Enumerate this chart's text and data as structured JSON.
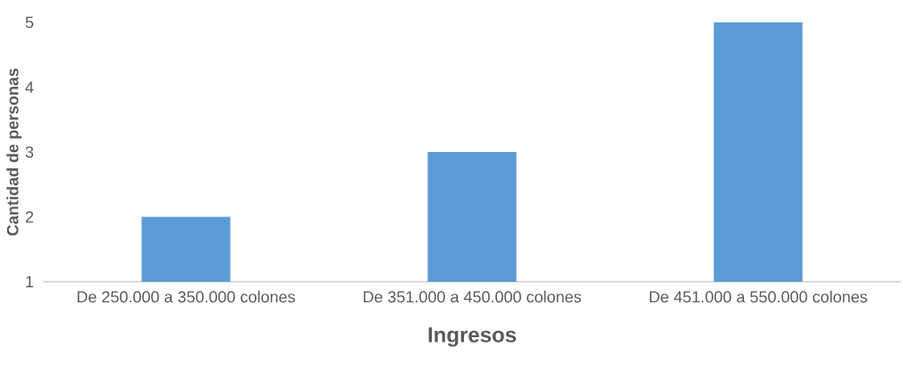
{
  "chart_data": {
    "type": "bar",
    "xlabel": "Ingresos",
    "ylabel": "Cantidad de personas",
    "categories": [
      "De 250.000 a 350.000 colones",
      "De 351.000 a 450.000 colones",
      "De 451.000 a 550.000 colones"
    ],
    "values": [
      2,
      3,
      5
    ],
    "color": "#5b9bd5",
    "ylim": [
      1,
      5
    ],
    "yticks": [
      1,
      2,
      3,
      4,
      5
    ]
  }
}
